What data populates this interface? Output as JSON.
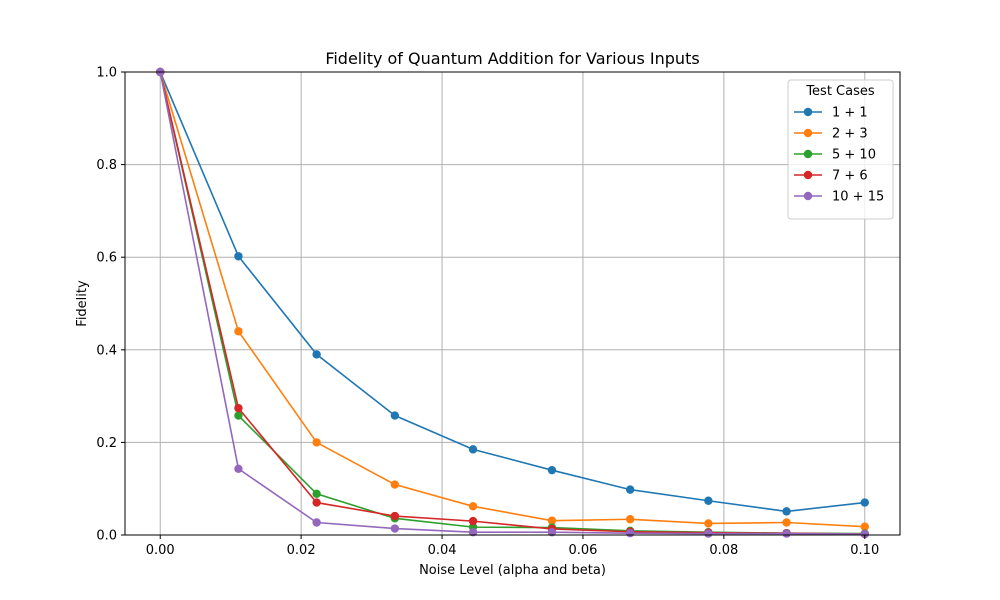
{
  "chart_data": {
    "type": "line",
    "title": "Fidelity of Quantum Addition for Various Inputs",
    "xlabel": "Noise Level (alpha and beta)",
    "ylabel": "Fidelity",
    "xlim": [
      -0.005,
      0.105
    ],
    "ylim": [
      0.0,
      1.0
    ],
    "grid": true,
    "legend_title": "Test Cases",
    "legend_position": "top-right",
    "x": [
      0.0,
      0.0111,
      0.0222,
      0.0333,
      0.0444,
      0.0556,
      0.0667,
      0.0778,
      0.0889,
      0.1
    ],
    "xticks": [
      0.0,
      0.02,
      0.04,
      0.06,
      0.08,
      0.1
    ],
    "xtick_labels": [
      "0.00",
      "0.02",
      "0.04",
      "0.06",
      "0.08",
      "0.10"
    ],
    "yticks": [
      0.0,
      0.2,
      0.4,
      0.6,
      0.8,
      1.0
    ],
    "ytick_labels": [
      "0.0",
      "0.2",
      "0.4",
      "0.6",
      "0.8",
      "1.0"
    ],
    "series": [
      {
        "name": "1 + 1",
        "color": "#1f77b4",
        "values": [
          1.0,
          0.602,
          0.39,
          0.258,
          0.185,
          0.14,
          0.098,
          0.074,
          0.051,
          0.07
        ]
      },
      {
        "name": "2 + 3",
        "color": "#ff7f0e",
        "values": [
          1.0,
          0.44,
          0.2,
          0.109,
          0.062,
          0.031,
          0.034,
          0.025,
          0.027,
          0.018
        ]
      },
      {
        "name": "5 + 10",
        "color": "#2ca02c",
        "values": [
          1.0,
          0.258,
          0.089,
          0.036,
          0.017,
          0.016,
          0.009,
          0.006,
          0.004,
          0.003
        ]
      },
      {
        "name": "7 + 6",
        "color": "#d62728",
        "values": [
          1.0,
          0.274,
          0.07,
          0.041,
          0.03,
          0.013,
          0.007,
          0.005,
          0.004,
          0.002
        ]
      },
      {
        "name": "10 + 15",
        "color": "#9467bd",
        "values": [
          1.0,
          0.143,
          0.027,
          0.014,
          0.006,
          0.006,
          0.004,
          0.003,
          0.003,
          0.002
        ]
      }
    ]
  }
}
